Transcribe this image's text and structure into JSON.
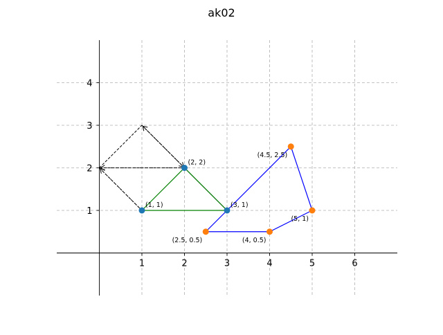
{
  "chart_data": {
    "type": "scatter",
    "title": "ak02",
    "xlabel": "",
    "ylabel": "",
    "xlim": [
      -1,
      7
    ],
    "ylim": [
      -1,
      5
    ],
    "x_ticks": [
      "1",
      "2",
      "3",
      "4",
      "5",
      "6"
    ],
    "y_ticks": [
      "1",
      "2",
      "3",
      "4"
    ],
    "x_tick_values": [
      1,
      2,
      3,
      4,
      5,
      6
    ],
    "y_tick_values": [
      1,
      2,
      3,
      4
    ],
    "grid": true,
    "grid_style": "dashed",
    "axes_through_origin": true,
    "triangle_points": [
      {
        "x": 1,
        "y": 1,
        "label": "(1, 1)"
      },
      {
        "x": 2,
        "y": 2,
        "label": "(2, 2)"
      },
      {
        "x": 3,
        "y": 1,
        "label": "(3, 1)"
      }
    ],
    "triangle_color": "#1f77b4",
    "triangle_edge_color": "#008000",
    "polygon_points": [
      {
        "x": 2.5,
        "y": 0.5,
        "label": "(2.5, 0.5)"
      },
      {
        "x": 4,
        "y": 0.5,
        "label": "(4, 0.5)"
      },
      {
        "x": 5,
        "y": 1,
        "label": "(5, 1)"
      },
      {
        "x": 4.5,
        "y": 2.5,
        "label": "(4.5, 2.5)"
      }
    ],
    "polygon_color": "#ff7f0e",
    "polygon_edge_color": "#0000ff",
    "construction_lines": [
      {
        "from": [
          0,
          2
        ],
        "to": [
          1,
          3
        ],
        "style": "dashed"
      },
      {
        "from": [
          0,
          2
        ],
        "to": [
          2,
          2
        ],
        "style": "dashed"
      },
      {
        "from": [
          0,
          2
        ],
        "to": [
          1,
          1
        ],
        "style": "dashed"
      },
      {
        "from": [
          1,
          3
        ],
        "to": [
          3,
          1
        ],
        "style": "dashed"
      },
      {
        "from": [
          2,
          2
        ],
        "to": [
          3,
          1
        ],
        "style": "dashed"
      }
    ],
    "arrows": [
      {
        "from": [
          1,
          1
        ],
        "to": [
          0,
          2
        ],
        "style": "dotted"
      },
      {
        "from": [
          2,
          2
        ],
        "to": [
          0,
          2
        ],
        "style": "dotted"
      },
      {
        "from": [
          3,
          1
        ],
        "to": [
          1,
          3
        ],
        "style": "dotted"
      },
      {
        "from": [
          1,
          3
        ],
        "to": [
          2,
          2
        ],
        "style": "dotted"
      }
    ]
  }
}
